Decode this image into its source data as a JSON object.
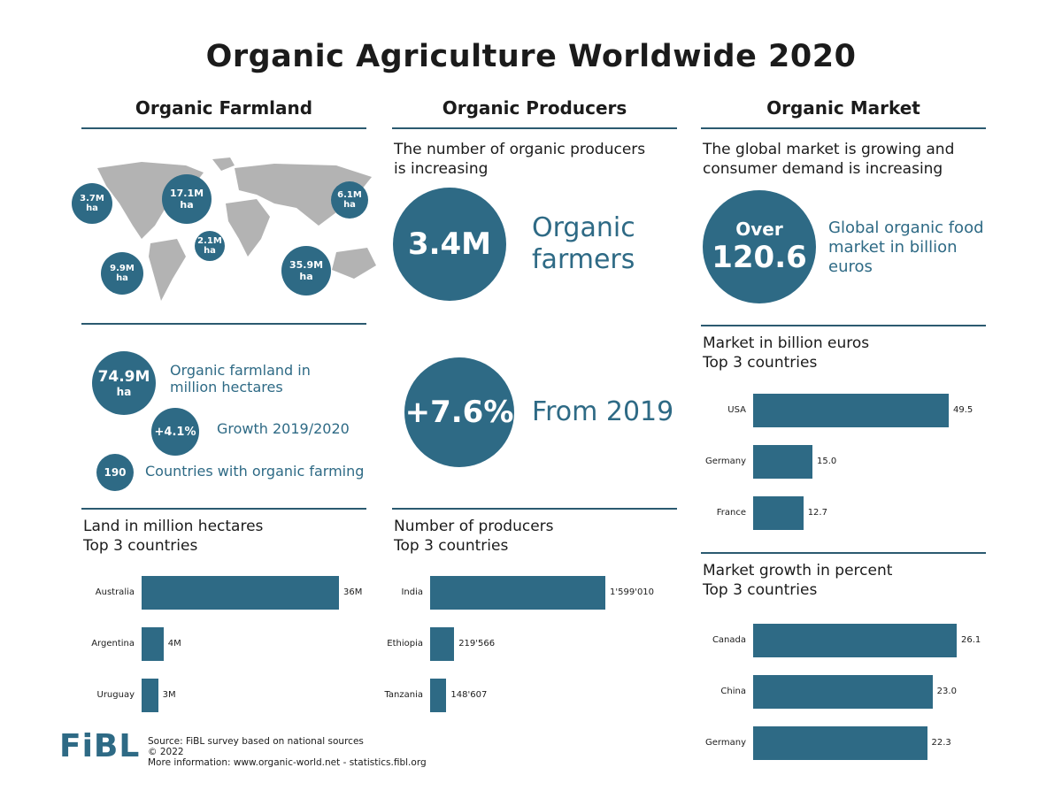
{
  "title": "Organic Agriculture Worldwide 2020",
  "sections": {
    "farmland": "Organic Farmland",
    "producers": "Organic Producers",
    "market": "Organic Market"
  },
  "map": {
    "bubbles": [
      {
        "value": "3.7M",
        "unit": "ha"
      },
      {
        "value": "17.1M",
        "unit": "ha"
      },
      {
        "value": "6.1M",
        "unit": "ha"
      },
      {
        "value": "2.1M",
        "unit": "ha"
      },
      {
        "value": "9.9M",
        "unit": "ha"
      },
      {
        "value": "35.9M",
        "unit": "ha"
      }
    ]
  },
  "farmland": {
    "total_value": "74.9M",
    "total_unit": "ha",
    "total_label": "Organic farmland in million hectares",
    "growth_value": "+4.1%",
    "growth_label": "Growth 2019/2020",
    "countries_value": "190",
    "countries_label": "Countries with organic farming"
  },
  "producers": {
    "intro": "The number of organic producers is increasing",
    "farmers_value": "3.4M",
    "farmers_label": "Organic farmers",
    "growth_value": "+7.6%",
    "growth_label": "From 2019"
  },
  "market": {
    "intro": "The global market is growing and consumer demand is increasing",
    "over": "Over",
    "value": "120.6",
    "label": "Global organic food market in billion euros"
  },
  "footer": {
    "logo": "FiBL",
    "source": "Source: FiBL survey based on national sources",
    "copyright": "© 2022",
    "more": "More information: www.organic-world.net - statistics.fibl.org"
  },
  "colors": {
    "accent": "#2e6a85",
    "map": "#b3b3b3"
  },
  "chart_data": [
    {
      "type": "bar",
      "orientation": "horizontal",
      "title": "Land in million hectares",
      "subtitle": "Top 3 countries",
      "categories": [
        "Australia",
        "Argentina",
        "Uruguay"
      ],
      "values": [
        36,
        4,
        3
      ],
      "labels": [
        "36M",
        "4M",
        "3M"
      ]
    },
    {
      "type": "bar",
      "orientation": "horizontal",
      "title": "Number of producers",
      "subtitle": "Top 3 countries",
      "categories": [
        "India",
        "Ethiopia",
        "Tanzania"
      ],
      "values": [
        1599010,
        219566,
        148607
      ],
      "labels": [
        "1'599'010",
        "219'566",
        "148'607"
      ]
    },
    {
      "type": "bar",
      "orientation": "horizontal",
      "title": "Market in billion euros",
      "subtitle": "Top 3 countries",
      "categories": [
        "USA",
        "Germany",
        "France"
      ],
      "values": [
        49.5,
        15.0,
        12.7
      ],
      "labels": [
        "49.5",
        "15.0",
        "12.7"
      ]
    },
    {
      "type": "bar",
      "orientation": "horizontal",
      "title": "Market growth in percent",
      "subtitle": "Top 3 countries",
      "categories": [
        "Canada",
        "China",
        "Germany"
      ],
      "values": [
        26.1,
        23.0,
        22.3
      ],
      "labels": [
        "26.1",
        "23.0",
        "22.3"
      ]
    }
  ]
}
